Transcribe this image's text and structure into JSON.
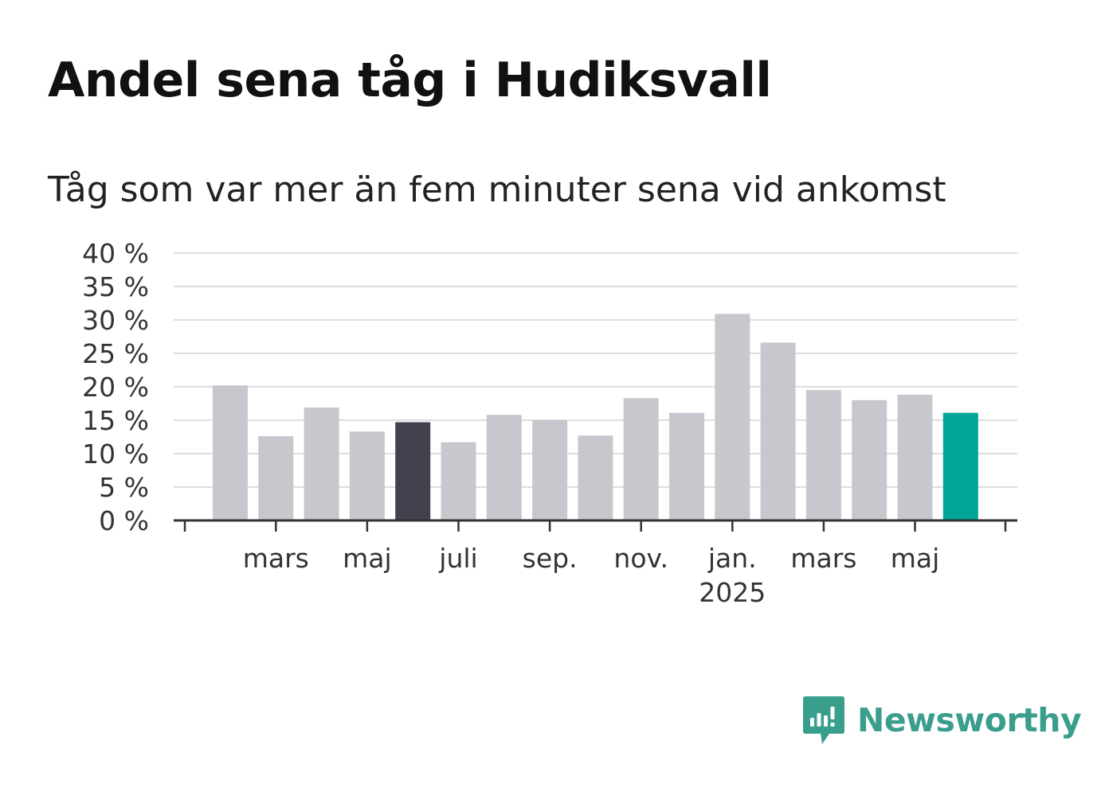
{
  "header": {
    "title": "Andel sena tåg i Hudiksvall",
    "subtitle": "Tåg som var mer än fem minuter sena vid ankomst"
  },
  "brand": {
    "name": "Newsworthy",
    "icon": "newsworthy-logo-icon",
    "color": "#3a9e8d"
  },
  "colors": {
    "bar_default": "#c8c7ce",
    "bar_highlight": "#44414e",
    "bar_latest": "#00a597",
    "grid": "#dddddd",
    "axis": "#333333"
  },
  "chart_data": {
    "type": "bar",
    "categories": [
      "2024-02",
      "2024-03",
      "2024-04",
      "2024-05",
      "2024-06",
      "2024-07",
      "2024-08",
      "2024-09",
      "2024-10",
      "2024-11",
      "2024-12",
      "2025-01",
      "2025-02",
      "2025-03",
      "2025-04",
      "2025-05",
      "2025-06"
    ],
    "values": [
      20.2,
      12.6,
      16.9,
      13.3,
      14.7,
      11.7,
      15.8,
      15.0,
      12.7,
      18.3,
      16.1,
      30.9,
      26.6,
      19.5,
      18.0,
      18.8,
      16.1
    ],
    "highlight_index": 4,
    "latest_index": 16,
    "ylim": [
      0,
      40
    ],
    "yticks": [
      0,
      5,
      10,
      15,
      20,
      25,
      30,
      35,
      40
    ],
    "ytick_labels": [
      "0 %",
      "5 %",
      "10 %",
      "15 %",
      "20 %",
      "25 %",
      "30 %",
      "35 %",
      "40 %"
    ],
    "xtick_labels": [
      {
        "index": 1,
        "label": "mars",
        "year": ""
      },
      {
        "index": 3,
        "label": "maj",
        "year": ""
      },
      {
        "index": 5,
        "label": "juli",
        "year": ""
      },
      {
        "index": 7,
        "label": "sep.",
        "year": ""
      },
      {
        "index": 9,
        "label": "nov.",
        "year": ""
      },
      {
        "index": 11,
        "label": "jan.",
        "year": "2025"
      },
      {
        "index": 13,
        "label": "mars",
        "year": ""
      },
      {
        "index": 15,
        "label": "maj",
        "year": ""
      }
    ],
    "grid": true,
    "xlabel": "",
    "ylabel": ""
  }
}
